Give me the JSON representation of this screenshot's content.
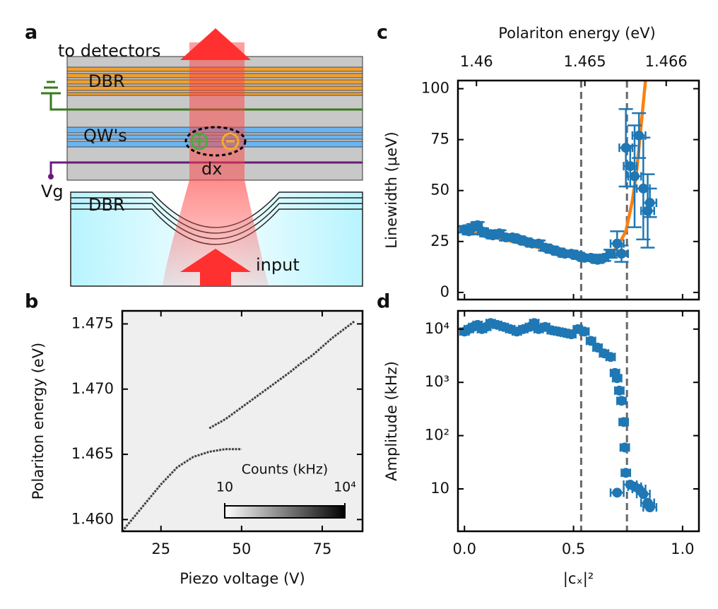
{
  "panel_labels": [
    "a",
    "b",
    "c",
    "d"
  ],
  "diagram": {
    "labels": [
      "to detectors",
      "DBR",
      "QW's",
      "dx",
      "Vg",
      "DBR",
      "input"
    ]
  },
  "chart_data": [
    {
      "type": "heatmap",
      "xlabel": "Piezo voltage (V)",
      "ylabel": "Polariton energy (eV)",
      "xlim": [
        13,
        87.5
      ],
      "ylim": [
        1.4591,
        1.476
      ],
      "xticks": [
        25,
        50,
        75
      ],
      "yticks": [
        {
          "value": 1.46,
          "label": "1.460"
        },
        1.465,
        {
          "value": 1.47,
          "label": "1.470"
        },
        1.475
      ],
      "series": [
        {
          "color": "#222222",
          "x": [
            13,
            15,
            20,
            25,
            30,
            35,
            40,
            45,
            50
          ],
          "values": [
            1.4591,
            1.4597,
            1.4612,
            1.4627,
            1.464,
            1.4648,
            1.4652,
            1.4654,
            1.4654
          ]
        },
        {
          "color": "#222222",
          "x": [
            40,
            45,
            50,
            55,
            60,
            65,
            68,
            72,
            78,
            85
          ],
          "values": [
            1.467,
            1.4677,
            1.4686,
            1.4695,
            1.4704,
            1.4713,
            1.4719,
            1.4726,
            1.4739,
            1.4752
          ]
        }
      ],
      "colorbar": {
        "label": "Counts (kHz)",
        "lim": [
          10,
          10000
        ],
        "ticks": [
          10,
          {
            "value": 10000,
            "label": "10⁴"
          }
        ]
      }
    },
    {
      "type": "scatter",
      "ylabel": "Linewidth (µeV)",
      "x2label": "Polariton energy (eV)",
      "xlim": [
        -0.03,
        1.075
      ],
      "ylim": [
        -3.5,
        104
      ],
      "xticks": [
        0,
        0.5,
        1
      ],
      "yticks": [
        0,
        25,
        50,
        75,
        100
      ],
      "x2ticks": [
        {
          "value": 0.055,
          "label": "1.46"
        },
        {
          "value": 0.552,
          "label": "1.465"
        },
        {
          "value": 0.925,
          "label": "1.466"
        }
      ],
      "color": "#1f77b4",
      "x": [
        0.0,
        0.02,
        0.04,
        0.06,
        0.08,
        0.1,
        0.13,
        0.16,
        0.19,
        0.22,
        0.25,
        0.28,
        0.31,
        0.34,
        0.37,
        0.4,
        0.43,
        0.46,
        0.49,
        0.52,
        0.55,
        0.58,
        0.61,
        0.64,
        0.67,
        0.7,
        0.72,
        0.74,
        0.76,
        0.78,
        0.8,
        0.82,
        0.84,
        0.85
      ],
      "values": [
        31,
        30,
        32,
        33,
        30,
        29,
        28,
        29,
        27,
        27,
        26,
        25,
        24,
        24,
        22,
        21,
        20,
        19,
        19,
        18,
        17,
        17,
        16,
        17,
        19,
        24,
        19,
        71,
        62,
        57,
        77,
        51,
        40,
        44
      ],
      "errors": [
        1.5,
        1.5,
        1.5,
        1.5,
        1.5,
        1.5,
        1.5,
        1.5,
        1.5,
        1.5,
        1.5,
        1.5,
        1.5,
        1.5,
        1.5,
        1.5,
        1.5,
        1.5,
        1.5,
        1.5,
        1.5,
        1.5,
        1.5,
        1.5,
        2,
        6,
        4,
        19,
        10,
        25,
        11,
        25,
        18,
        7
      ],
      "xerrors": [
        0.02,
        0.02,
        0.02,
        0.02,
        0.02,
        0.02,
        0.02,
        0.02,
        0.02,
        0.02,
        0.02,
        0.02,
        0.02,
        0.02,
        0.02,
        0.02,
        0.02,
        0.02,
        0.02,
        0.02,
        0.02,
        0.02,
        0.02,
        0.02,
        0.02,
        0.03,
        0.03,
        0.03,
        0.03,
        0.03,
        0.03,
        0.03,
        0.03,
        0.03
      ],
      "fit": {
        "color": "#ff7f0e",
        "x": [
          0,
          0.1,
          0.2,
          0.3,
          0.4,
          0.5,
          0.55,
          0.6,
          0.65,
          0.7,
          0.74,
          0.77,
          0.79,
          0.81,
          0.83
        ],
        "values": [
          30,
          28,
          25.5,
          23,
          20.5,
          18.5,
          17.5,
          16.5,
          17.5,
          22,
          30,
          45,
          60,
          82,
          104
        ]
      },
      "vlines": [
        0.535,
        0.745
      ],
      "vline_color": "#666666"
    },
    {
      "type": "scatter",
      "xlabel": "|cₓ|²",
      "ylabel": "Amplitude (kHz)",
      "log_y": true,
      "xlim": [
        -0.03,
        1.075
      ],
      "ylim": [
        1.6,
        22000
      ],
      "xticks": [
        {
          "value": 0,
          "label": "0.0"
        },
        0.5,
        {
          "value": 1,
          "label": "1.0"
        }
      ],
      "yticks": [
        10,
        {
          "value": 100,
          "label": "10²"
        },
        {
          "value": 1000,
          "label": "10³"
        },
        {
          "value": 10000,
          "label": "10⁴"
        }
      ],
      "color": "#1f77b4",
      "x": [
        0.0,
        0.02,
        0.04,
        0.06,
        0.08,
        0.1,
        0.12,
        0.15,
        0.18,
        0.21,
        0.24,
        0.27,
        0.3,
        0.32,
        0.34,
        0.37,
        0.4,
        0.43,
        0.46,
        0.49,
        0.52,
        0.55,
        0.58,
        0.61,
        0.64,
        0.67,
        0.69,
        0.7,
        0.71,
        0.72,
        0.73,
        0.735,
        0.74,
        0.7,
        0.76,
        0.78,
        0.8,
        0.82,
        0.84,
        0.85
      ],
      "values": [
        9000,
        10000,
        11000,
        12000,
        10000,
        11000,
        13000,
        12000,
        11000,
        10000,
        9000,
        10000,
        11000,
        13000,
        10000,
        11000,
        9500,
        9000,
        8500,
        8000,
        10000,
        9000,
        6000,
        4500,
        3500,
        3000,
        1500,
        1200,
        700,
        450,
        180,
        60,
        20,
        8.5,
        12,
        11,
        10,
        8,
        5.5,
        4.5
      ],
      "xerrors": [
        0.02,
        0.02,
        0.02,
        0.02,
        0.02,
        0.02,
        0.02,
        0.02,
        0.02,
        0.02,
        0.02,
        0.02,
        0.02,
        0.02,
        0.02,
        0.02,
        0.02,
        0.02,
        0.02,
        0.02,
        0.02,
        0.02,
        0.02,
        0.02,
        0.02,
        0.02,
        0.02,
        0.02,
        0.02,
        0.02,
        0.02,
        0.02,
        0.02,
        0.03,
        0.03,
        0.03,
        0.03,
        0.03,
        0.03,
        0.03
      ],
      "vlines": [
        0.535,
        0.745
      ],
      "vline_color": "#666666"
    }
  ]
}
